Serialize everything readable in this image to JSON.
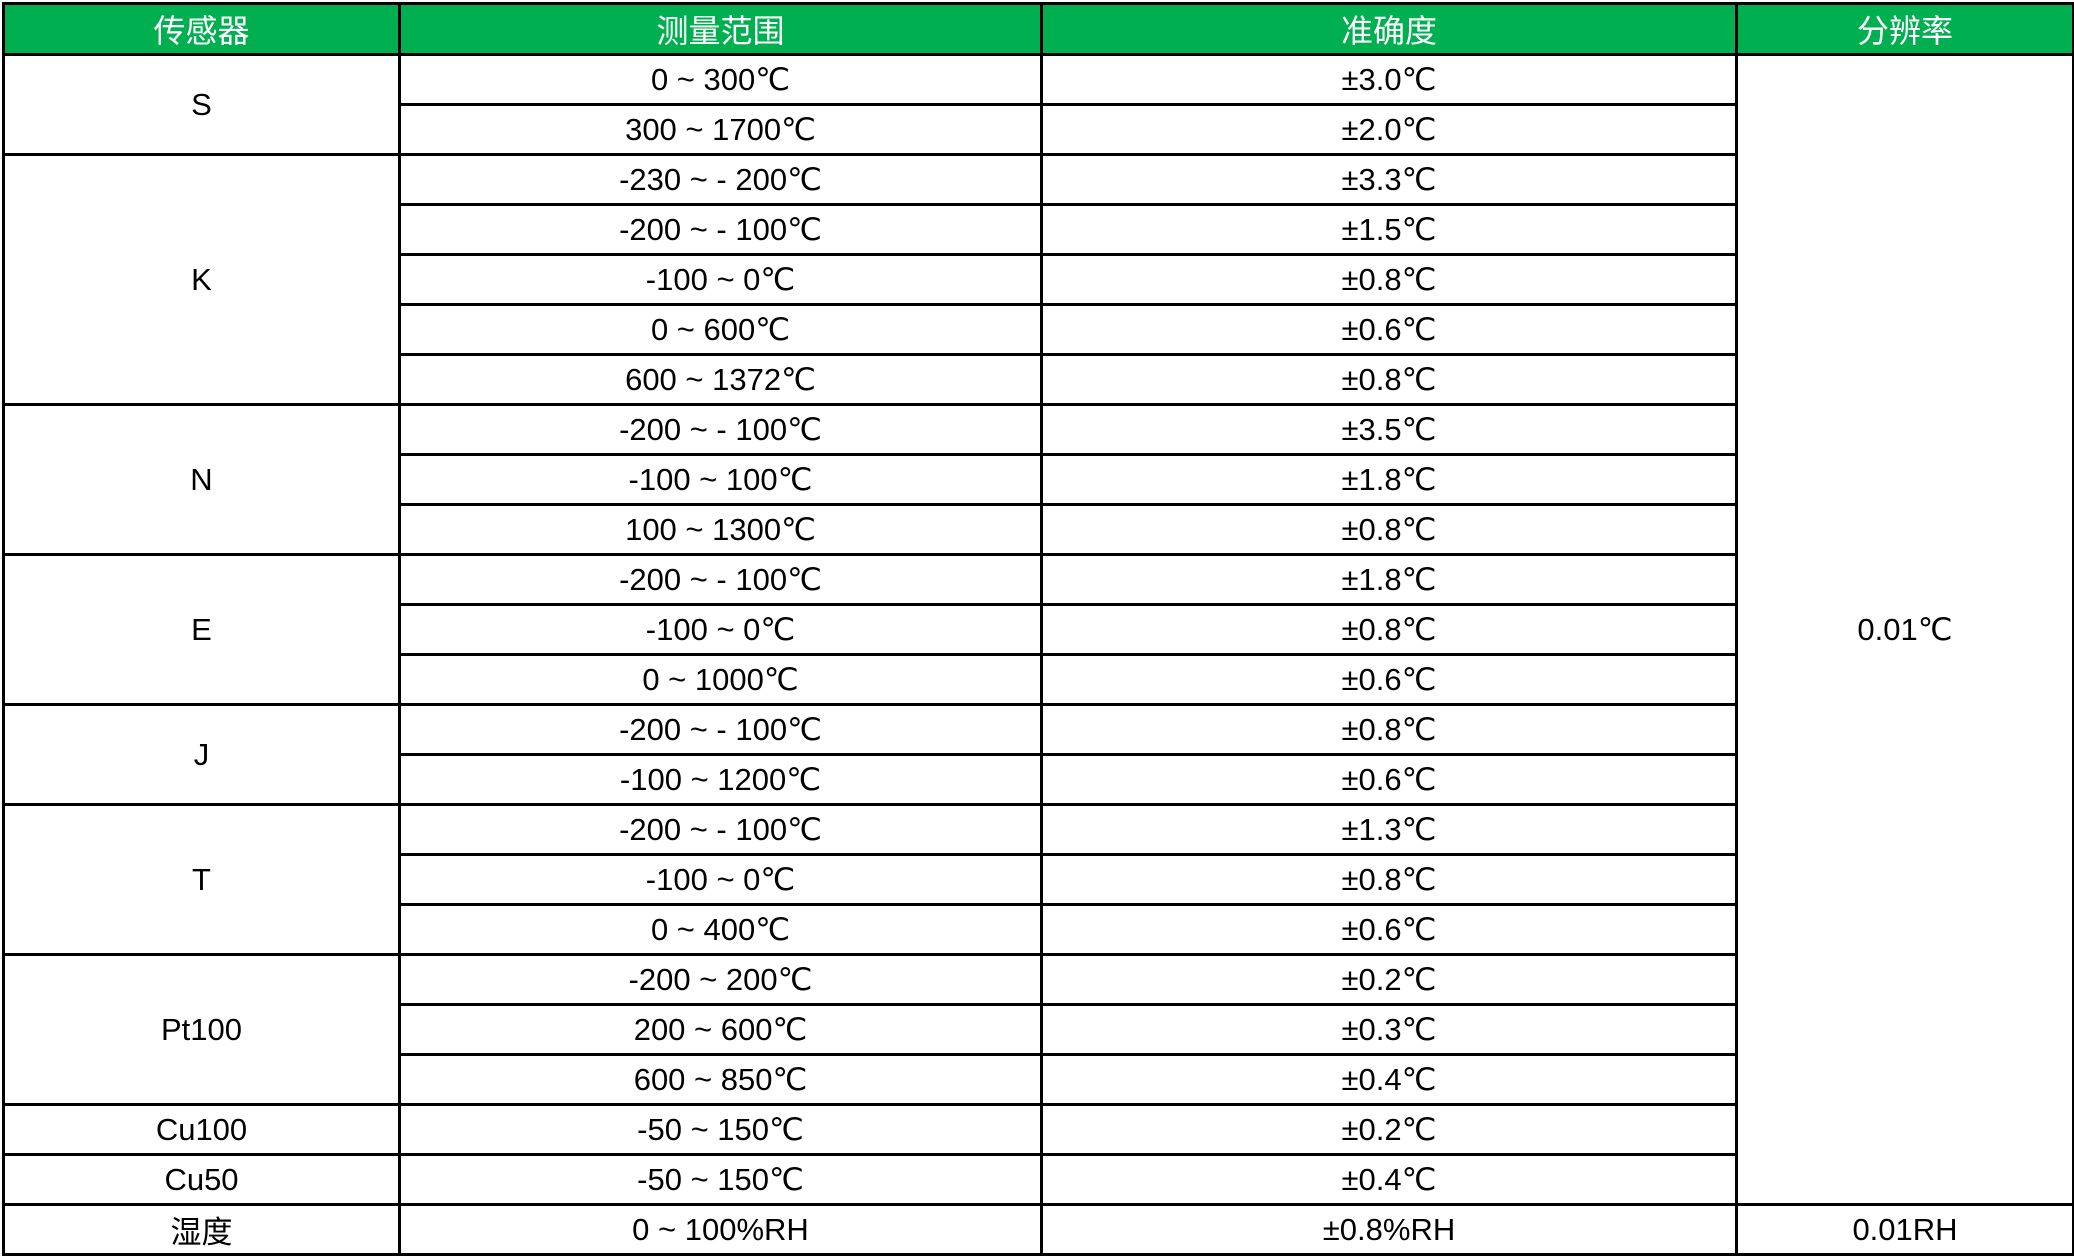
{
  "header": {
    "sensor": "传感器",
    "range": "测量范围",
    "accuracy": "准确度",
    "resolution": "分辨率"
  },
  "header_color": "#00b050",
  "sensors": [
    {
      "name": "S",
      "rows": [
        {
          "range": "0 ~ 300℃",
          "accuracy": "±3.0℃"
        },
        {
          "range": "300 ~ 1700℃",
          "accuracy": "±2.0℃"
        }
      ]
    },
    {
      "name": "K",
      "rows": [
        {
          "range": "-230 ~  - 200℃",
          "accuracy": "±3.3℃"
        },
        {
          "range": "-200 ~  - 100℃",
          "accuracy": "±1.5℃"
        },
        {
          "range": "-100 ~ 0℃",
          "accuracy": "±0.8℃"
        },
        {
          "range": "0 ~ 600℃",
          "accuracy": "±0.6℃"
        },
        {
          "range": "600 ~ 1372℃",
          "accuracy": "±0.8℃"
        }
      ]
    },
    {
      "name": "N",
      "rows": [
        {
          "range": "-200 ~  - 100℃",
          "accuracy": "±3.5℃"
        },
        {
          "range": "-100 ~ 100℃",
          "accuracy": "±1.8℃"
        },
        {
          "range": "100 ~ 1300℃",
          "accuracy": "±0.8℃"
        }
      ]
    },
    {
      "name": "E",
      "rows": [
        {
          "range": "-200 ~  - 100℃",
          "accuracy": "±1.8℃"
        },
        {
          "range": "-100 ~ 0℃",
          "accuracy": "±0.8℃"
        },
        {
          "range": "0 ~ 1000℃",
          "accuracy": "±0.6℃"
        }
      ]
    },
    {
      "name": "J",
      "rows": [
        {
          "range": "-200 ~  - 100℃",
          "accuracy": "±0.8℃"
        },
        {
          "range": "-100 ~ 1200℃",
          "accuracy": "±0.6℃"
        }
      ]
    },
    {
      "name": "T",
      "rows": [
        {
          "range": "-200 ~  - 100℃",
          "accuracy": "±1.3℃"
        },
        {
          "range": "-100 ~ 0℃",
          "accuracy": "±0.8℃"
        },
        {
          "range": "0 ~ 400℃",
          "accuracy": "±0.6℃"
        }
      ]
    },
    {
      "name": "Pt100",
      "rows": [
        {
          "range": "-200 ~ 200℃",
          "accuracy": "±0.2℃"
        },
        {
          "range": "200 ~ 600℃",
          "accuracy": "±0.3℃"
        },
        {
          "range": "600 ~ 850℃",
          "accuracy": "±0.4℃"
        }
      ]
    },
    {
      "name": "Cu100",
      "rows": [
        {
          "range": "-50 ~ 150℃",
          "accuracy": "±0.2℃"
        }
      ]
    },
    {
      "name": "Cu50",
      "rows": [
        {
          "range": "-50 ~ 150℃",
          "accuracy": "±0.4℃"
        }
      ]
    }
  ],
  "temperature_resolution": "0.01℃",
  "humidity": {
    "name": "湿度",
    "range": "0 ~ 100%RH",
    "accuracy": "±0.8%RH",
    "resolution": "0.01RH"
  }
}
